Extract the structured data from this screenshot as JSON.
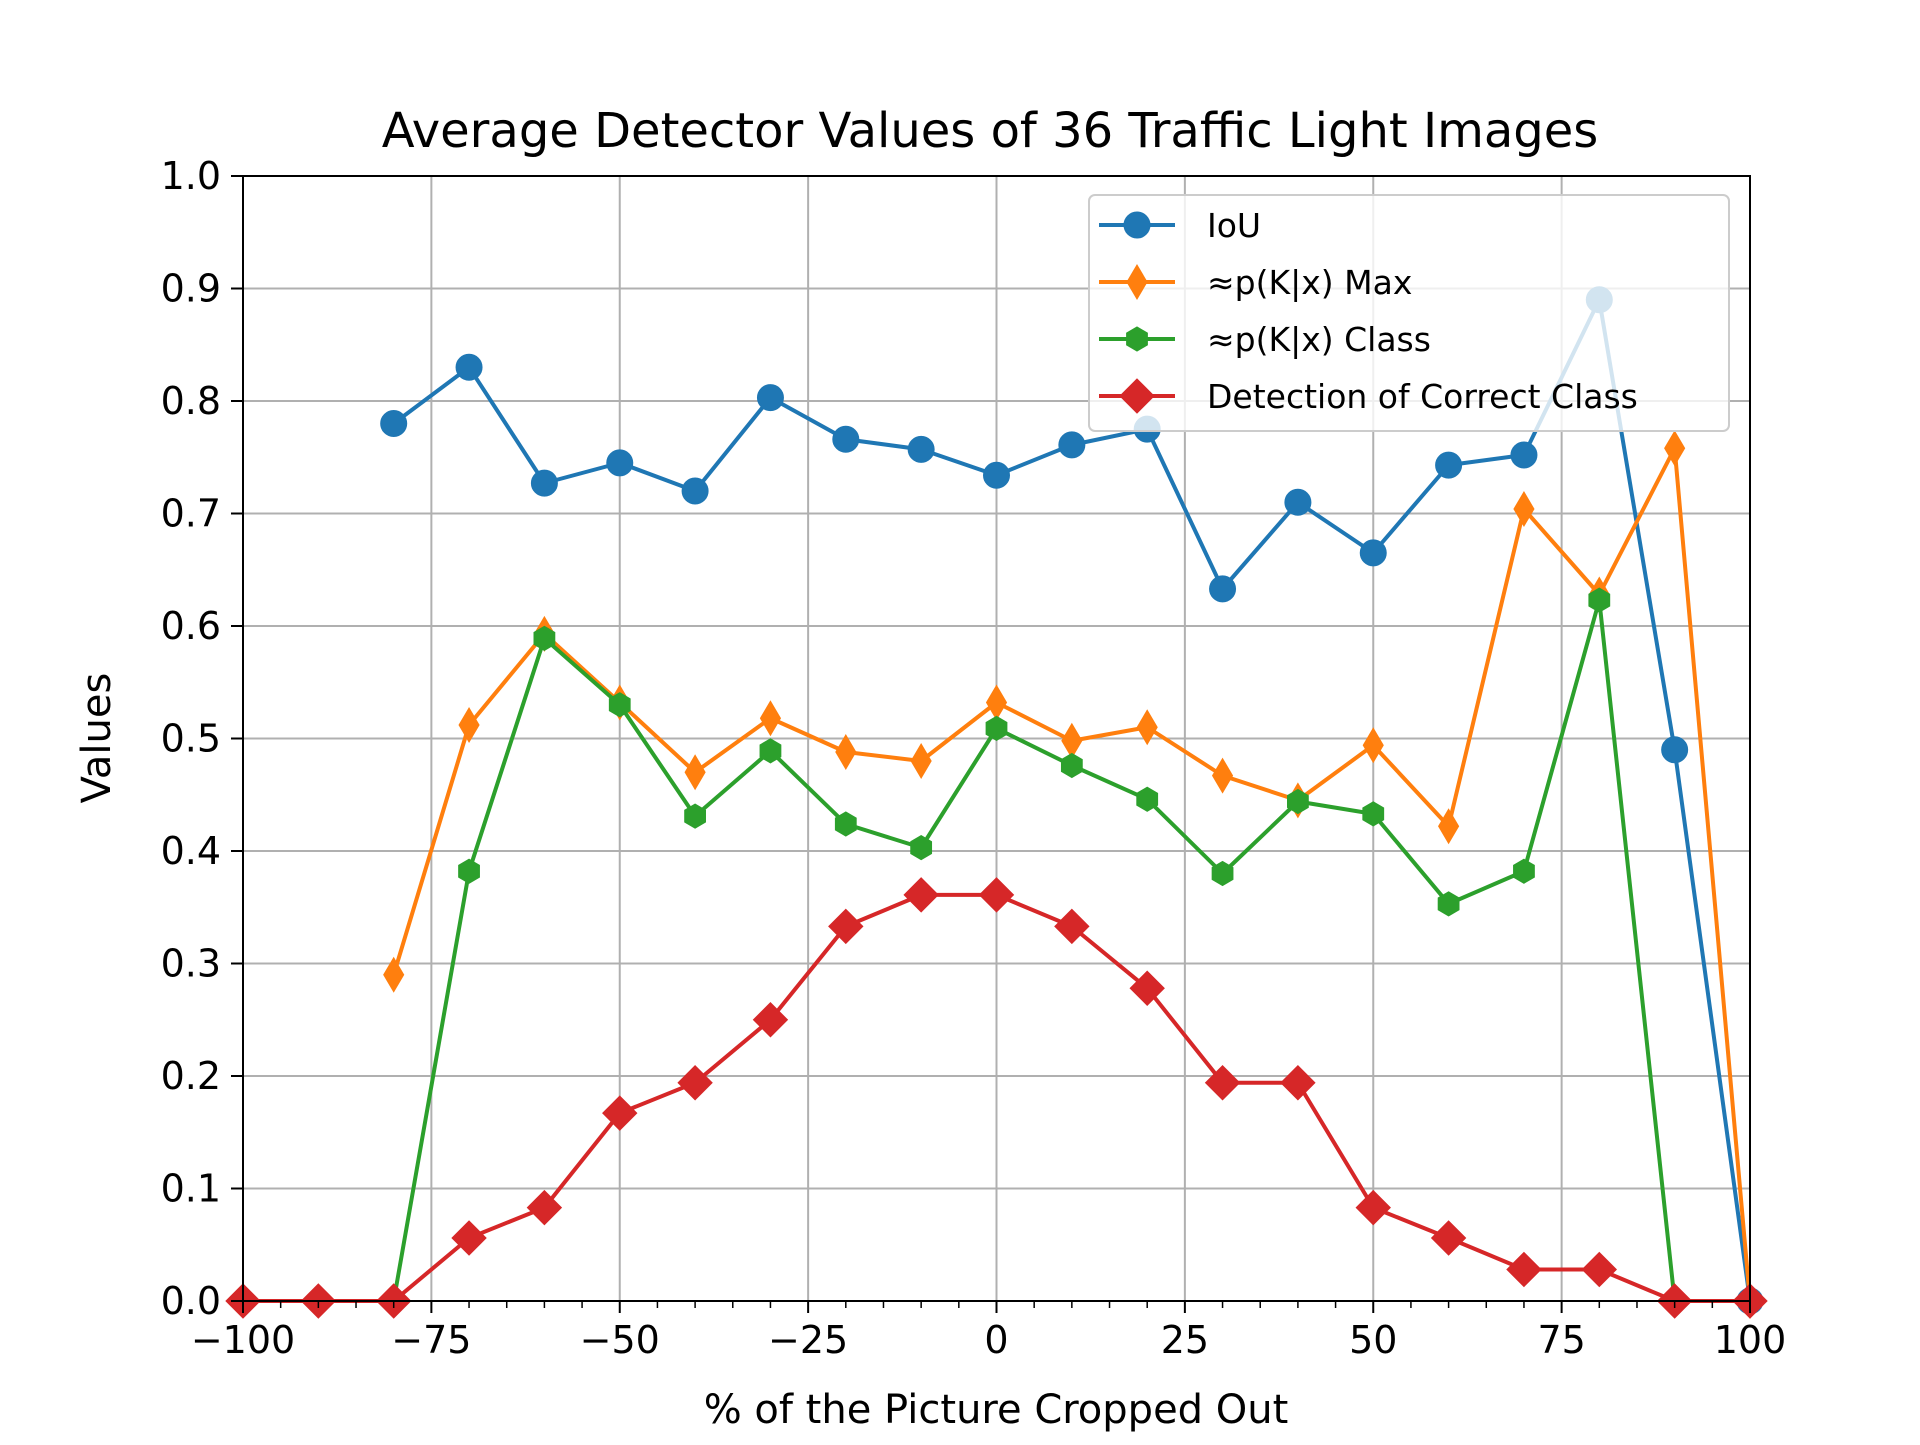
{
  "chart_data": {
    "type": "line",
    "title": "Average Detector Values of 36 Traffic Light Images",
    "xlabel": "% of the Picture Cropped Out",
    "ylabel": "Values",
    "xlim": [
      -100,
      100
    ],
    "ylim": [
      0,
      1.0
    ],
    "xticks": [
      -100,
      -75,
      -50,
      -25,
      0,
      25,
      50,
      75,
      100
    ],
    "xtick_labels": [
      "−100",
      "−75",
      "−50",
      "−25",
      "0",
      "25",
      "50",
      "75",
      "100"
    ],
    "yticks": [
      0.0,
      0.1,
      0.2,
      0.3,
      0.4,
      0.5,
      0.6,
      0.7,
      0.8,
      0.9,
      1.0
    ],
    "ytick_labels": [
      "0.0",
      "0.1",
      "0.2",
      "0.3",
      "0.4",
      "0.5",
      "0.6",
      "0.7",
      "0.8",
      "0.9",
      "1.0"
    ],
    "grid": true,
    "legend_position": "top-right",
    "series": [
      {
        "name": "IoU",
        "color": "#1f77b4",
        "marker": "circle",
        "x": [
          -80,
          -70,
          -60,
          -50,
          -40,
          -30,
          -20,
          -10,
          0,
          10,
          20,
          30,
          40,
          50,
          60,
          70,
          80,
          90,
          100
        ],
        "y": [
          0.78,
          0.83,
          0.727,
          0.745,
          0.72,
          0.803,
          0.766,
          0.757,
          0.734,
          0.761,
          0.775,
          0.633,
          0.71,
          0.665,
          0.743,
          0.752,
          0.89,
          0.49,
          0.0
        ]
      },
      {
        "name": "≈p(K|x) Max",
        "color": "#ff7f0e",
        "marker": "thin-diamond",
        "x": [
          -80,
          -70,
          -60,
          -50,
          -40,
          -30,
          -20,
          -10,
          0,
          10,
          20,
          30,
          40,
          50,
          60,
          70,
          80,
          90,
          100
        ],
        "y": [
          0.29,
          0.512,
          0.593,
          0.532,
          0.47,
          0.518,
          0.488,
          0.48,
          0.532,
          0.498,
          0.51,
          0.467,
          0.445,
          0.494,
          0.422,
          0.704,
          0.628,
          0.758,
          0.0
        ]
      },
      {
        "name": "≈p(K|x) Class",
        "color": "#2ca02c",
        "marker": "hexagon",
        "x": [
          -80,
          -70,
          -60,
          -50,
          -40,
          -30,
          -20,
          -10,
          0,
          10,
          20,
          30,
          40,
          50,
          60,
          70,
          80,
          90,
          100
        ],
        "y": [
          0.0,
          0.382,
          0.589,
          0.53,
          0.431,
          0.489,
          0.424,
          0.403,
          0.509,
          0.476,
          0.446,
          0.38,
          0.444,
          0.433,
          0.353,
          0.382,
          0.623,
          0.0,
          0.0
        ]
      },
      {
        "name": "Detection of Correct Class",
        "color": "#d62728",
        "marker": "diamond",
        "x": [
          -100,
          -90,
          -80,
          -70,
          -60,
          -50,
          -40,
          -30,
          -20,
          -10,
          0,
          10,
          20,
          30,
          40,
          50,
          60,
          70,
          80,
          90,
          100
        ],
        "y": [
          0.0,
          0.0,
          0.0,
          0.056,
          0.083,
          0.167,
          0.194,
          0.25,
          0.333,
          0.361,
          0.361,
          0.333,
          0.278,
          0.194,
          0.194,
          0.083,
          0.056,
          0.028,
          0.028,
          0.0,
          0.0
        ]
      }
    ]
  }
}
